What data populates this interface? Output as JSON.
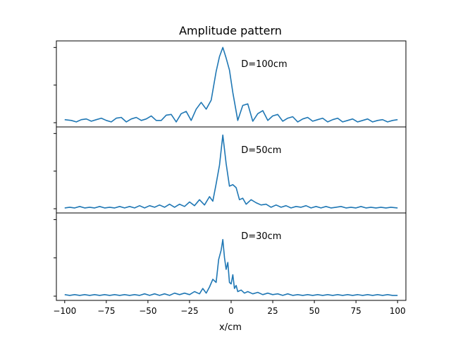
{
  "chart_data": {
    "type": "line",
    "title": "Amplitude pattern",
    "xlabel": "x/cm",
    "ylabel": "",
    "xlim": [
      -105,
      105
    ],
    "xticks": [
      -100,
      -75,
      -50,
      -25,
      0,
      25,
      50,
      75,
      100
    ],
    "xtick_labels": [
      "−100",
      "−75",
      "−50",
      "−25",
      "0",
      "25",
      "50",
      "75",
      "100"
    ],
    "yticks_labeled": false,
    "grid": false,
    "sharex": true,
    "panels": [
      {
        "annotation": "D=100cm",
        "peak_x": -5,
        "ylim": [
          0,
          1.05
        ],
        "series": [
          {
            "x": [
              -100,
              -96,
              -93,
              -90,
              -87,
              -84,
              -81,
              -78,
              -75,
              -72,
              -69,
              -66,
              -63,
              -60,
              -57,
              -54,
              -51,
              -48,
              -45,
              -42,
              -39,
              -36,
              -33,
              -30,
              -27,
              -24,
              -21,
              -18,
              -15,
              -12,
              -9,
              -7,
              -5,
              -3,
              -1,
              1,
              4,
              7,
              10,
              13,
              16,
              19,
              22,
              25,
              28,
              31,
              34,
              37,
              40,
              43,
              46,
              49,
              52,
              55,
              58,
              61,
              64,
              67,
              70,
              73,
              76,
              79,
              82,
              85,
              88,
              91,
              94,
              97,
              100
            ],
            "y": [
              0.04,
              0.03,
              0.01,
              0.04,
              0.05,
              0.02,
              0.04,
              0.06,
              0.03,
              0.01,
              0.06,
              0.07,
              0.01,
              0.05,
              0.07,
              0.03,
              0.05,
              0.09,
              0.03,
              0.03,
              0.1,
              0.11,
              0.01,
              0.12,
              0.15,
              0.03,
              0.18,
              0.27,
              0.18,
              0.3,
              0.68,
              0.88,
              1.0,
              0.86,
              0.7,
              0.4,
              0.03,
              0.23,
              0.25,
              0.02,
              0.12,
              0.16,
              0.03,
              0.09,
              0.11,
              0.02,
              0.06,
              0.08,
              0.01,
              0.05,
              0.07,
              0.02,
              0.04,
              0.06,
              0.01,
              0.04,
              0.06,
              0.01,
              0.03,
              0.05,
              0.01,
              0.03,
              0.05,
              0.01,
              0.03,
              0.04,
              0.01,
              0.03,
              0.04
            ]
          }
        ]
      },
      {
        "annotation": "D=50cm",
        "peak_x": -5,
        "ylim": [
          0,
          1.05
        ],
        "series": [
          {
            "x": [
              -100,
              -97,
              -94,
              -91,
              -88,
              -85,
              -82,
              -79,
              -76,
              -73,
              -70,
              -67,
              -64,
              -61,
              -58,
              -55,
              -52,
              -49,
              -46,
              -43,
              -40,
              -37,
              -34,
              -31,
              -28,
              -25,
              -22,
              -19,
              -16,
              -13,
              -11,
              -9,
              -7,
              -5,
              -3,
              -1,
              1,
              3,
              5,
              7,
              9,
              12,
              15,
              18,
              21,
              24,
              27,
              30,
              33,
              36,
              39,
              42,
              45,
              48,
              51,
              54,
              57,
              60,
              63,
              66,
              69,
              72,
              75,
              78,
              81,
              84,
              87,
              90,
              93,
              96,
              100
            ],
            "y": [
              0.01,
              0.02,
              0.01,
              0.03,
              0.01,
              0.02,
              0.01,
              0.03,
              0.01,
              0.02,
              0.01,
              0.03,
              0.01,
              0.03,
              0.01,
              0.04,
              0.01,
              0.04,
              0.02,
              0.05,
              0.02,
              0.06,
              0.02,
              0.06,
              0.03,
              0.09,
              0.04,
              0.12,
              0.05,
              0.16,
              0.1,
              0.33,
              0.58,
              0.98,
              0.6,
              0.3,
              0.32,
              0.28,
              0.12,
              0.14,
              0.06,
              0.12,
              0.08,
              0.05,
              0.06,
              0.02,
              0.05,
              0.02,
              0.04,
              0.01,
              0.03,
              0.02,
              0.04,
              0.01,
              0.03,
              0.01,
              0.03,
              0.01,
              0.02,
              0.03,
              0.01,
              0.02,
              0.01,
              0.03,
              0.01,
              0.02,
              0.01,
              0.02,
              0.01,
              0.02,
              0.01
            ]
          }
        ]
      },
      {
        "annotation": "D=30cm",
        "peak_x": -5,
        "ylim": [
          0,
          1.05
        ],
        "series": [
          {
            "x": [
              -100,
              -97,
              -94,
              -91,
              -88,
              -85,
              -82,
              -79,
              -76,
              -73,
              -70,
              -67,
              -64,
              -61,
              -58,
              -55,
              -52,
              -49,
              -46,
              -43,
              -40,
              -37,
              -34,
              -31,
              -28,
              -25,
              -22,
              -19,
              -17,
              -15,
              -13,
              -11,
              -9,
              -7.5,
              -6,
              -5,
              -4,
              -3,
              -2,
              -1,
              0,
              1,
              2,
              3,
              4,
              6,
              8,
              10,
              13,
              16,
              19,
              22,
              25,
              28,
              31,
              34,
              37,
              40,
              43,
              46,
              49,
              52,
              55,
              58,
              61,
              64,
              67,
              70,
              73,
              76,
              79,
              82,
              85,
              88,
              91,
              94,
              97,
              100
            ],
            "y": [
              0.02,
              0.01,
              0.02,
              0.01,
              0.02,
              0.01,
              0.02,
              0.01,
              0.02,
              0.01,
              0.02,
              0.01,
              0.02,
              0.01,
              0.02,
              0.01,
              0.03,
              0.01,
              0.03,
              0.01,
              0.03,
              0.01,
              0.04,
              0.02,
              0.04,
              0.02,
              0.06,
              0.03,
              0.1,
              0.04,
              0.12,
              0.22,
              0.18,
              0.48,
              0.6,
              0.74,
              0.5,
              0.35,
              0.44,
              0.18,
              0.16,
              0.28,
              0.1,
              0.14,
              0.06,
              0.08,
              0.04,
              0.06,
              0.03,
              0.05,
              0.02,
              0.04,
              0.02,
              0.03,
              0.01,
              0.03,
              0.01,
              0.02,
              0.01,
              0.02,
              0.01,
              0.02,
              0.01,
              0.02,
              0.01,
              0.02,
              0.01,
              0.02,
              0.01,
              0.02,
              0.01,
              0.02,
              0.01,
              0.02,
              0.01,
              0.02,
              0.01,
              0.01
            ]
          }
        ]
      }
    ]
  }
}
